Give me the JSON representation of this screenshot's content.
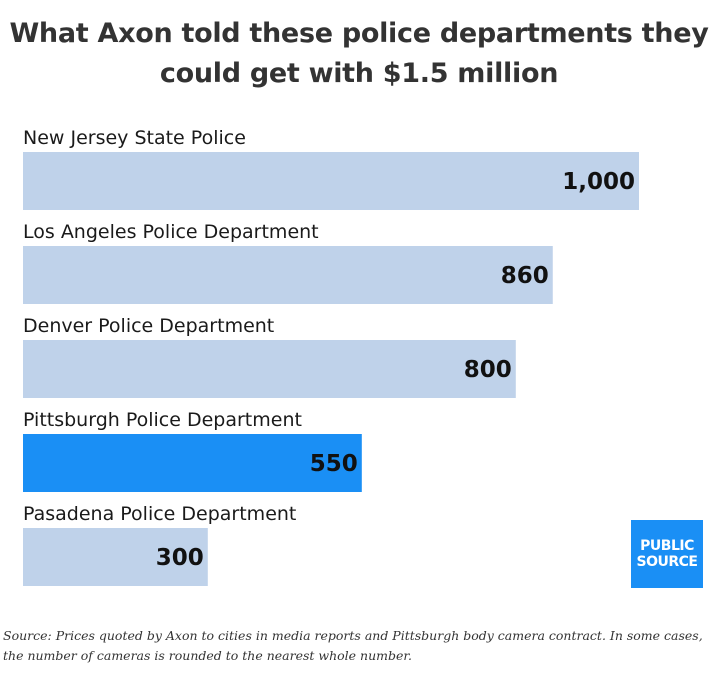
{
  "title": {
    "line1": "What Axon told these police departments they",
    "line2": "could get with $1.5 million"
  },
  "chart_data": {
    "type": "bar",
    "orientation": "horizontal",
    "title": "What Axon told these police departments they could get with $1.5 million",
    "categories": [
      "New Jersey State Police",
      "Los Angeles Police Department",
      "Denver Police Department",
      "Pittsburgh Police Department",
      "Pasadena Police Department"
    ],
    "values": [
      1000,
      860,
      800,
      550,
      300
    ],
    "value_labels": [
      "1,000",
      "860",
      "800",
      "550",
      "300"
    ],
    "highlight_index": 3,
    "colors": {
      "default": "#bfd2ea",
      "highlight": "#1a8ff5"
    },
    "xlim": [
      0,
      1000
    ],
    "grid": false,
    "legend": "none"
  },
  "logo": {
    "line1": "PUBLIC",
    "line2": "SOURCE",
    "color": "#1a8ff5"
  },
  "source": {
    "text": "Source: Prices quoted by Axon to cities in media reports and Pittsburgh body camera contract. In some cases, the number of cameras is rounded to the nearest whole number."
  }
}
